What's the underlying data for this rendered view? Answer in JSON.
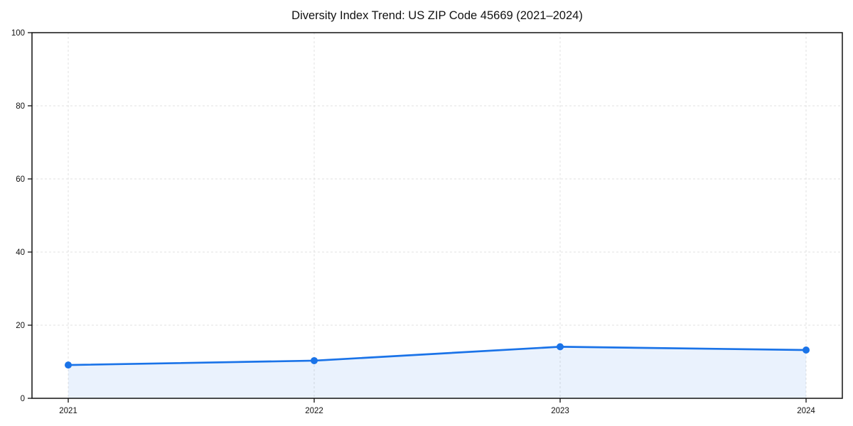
{
  "chart_data": {
    "type": "area",
    "title": "Diversity Index Trend: US ZIP Code 45669 (2021–2024)",
    "categories": [
      "2021",
      "2022",
      "2023",
      "2024"
    ],
    "series": [
      {
        "name": "Diversity Index",
        "values": [
          9.1,
          10.3,
          14.1,
          13.2
        ]
      }
    ],
    "xlabel": "",
    "ylabel": "",
    "ylim": [
      0,
      100
    ],
    "yticks": [
      0,
      20,
      40,
      60,
      80,
      100
    ],
    "grid": "dashed",
    "legend": "none",
    "colors": {
      "line": "#1a73e8",
      "marker": "#1a73e8",
      "fill": "rgba(26,115,232,0.09)",
      "gridline": "#e0e0e0",
      "frame": "#111111",
      "tick_text": "#111111",
      "background": "#ffffff"
    }
  }
}
